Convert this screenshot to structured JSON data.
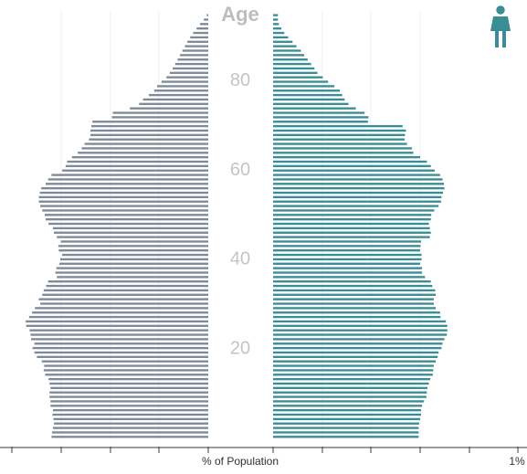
{
  "chart_data": {
    "type": "bar",
    "subtype": "population-pyramid",
    "title": "",
    "age_title": "Age",
    "xlabel": "% of Population",
    "ylabel": "Age",
    "age_range": [
      0,
      95
    ],
    "age_tick_labels": [
      "20",
      "40",
      "60",
      "80"
    ],
    "x_tick_labels": [
      "1%"
    ],
    "xlim": [
      0,
      1
    ],
    "grid": true,
    "legend": "none",
    "series": [
      {
        "name": "",
        "side": "left",
        "color": "#7f8a99",
        "values": [
          0.322,
          0.321,
          0.319,
          0.317,
          0.318,
          0.32,
          0.319,
          0.324,
          0.324,
          0.326,
          0.326,
          0.324,
          0.326,
          0.328,
          0.335,
          0.338,
          0.337,
          0.342,
          0.352,
          0.357,
          0.361,
          0.357,
          0.364,
          0.365,
          0.367,
          0.374,
          0.375,
          0.368,
          0.362,
          0.356,
          0.345,
          0.348,
          0.341,
          0.338,
          0.333,
          0.329,
          0.311,
          0.314,
          0.312,
          0.306,
          0.304,
          0.3,
          0.307,
          0.308,
          0.303,
          0.311,
          0.317,
          0.319,
          0.328,
          0.334,
          0.336,
          0.341,
          0.345,
          0.348,
          0.348,
          0.346,
          0.343,
          0.334,
          0.329,
          0.322,
          0.3,
          0.293,
          0.29,
          0.28,
          0.268,
          0.26,
          0.254,
          0.245,
          0.242,
          0.242,
          0.24,
          0.238,
          0.198,
          0.196,
          0.161,
          0.142,
          0.134,
          0.122,
          0.111,
          0.105,
          0.096,
          0.086,
          0.079,
          0.073,
          0.068,
          0.063,
          0.058,
          0.053,
          0.048,
          0.043,
          0.037,
          0.031,
          0.024,
          0.017,
          0.009,
          0.003
        ]
      },
      {
        "name": "",
        "side": "right",
        "color": "#3a8d94",
        "values": [
          0.299,
          0.299,
          0.299,
          0.3,
          0.302,
          0.304,
          0.304,
          0.306,
          0.31,
          0.315,
          0.316,
          0.317,
          0.32,
          0.323,
          0.328,
          0.329,
          0.33,
          0.334,
          0.338,
          0.34,
          0.346,
          0.348,
          0.352,
          0.357,
          0.358,
          0.358,
          0.355,
          0.344,
          0.343,
          0.334,
          0.33,
          0.33,
          0.334,
          0.333,
          0.327,
          0.324,
          0.312,
          0.306,
          0.306,
          0.302,
          0.305,
          0.305,
          0.302,
          0.303,
          0.304,
          0.322,
          0.324,
          0.322,
          0.32,
          0.324,
          0.325,
          0.331,
          0.34,
          0.345,
          0.346,
          0.349,
          0.352,
          0.351,
          0.348,
          0.343,
          0.332,
          0.324,
          0.316,
          0.302,
          0.288,
          0.285,
          0.275,
          0.27,
          0.271,
          0.273,
          0.266,
          0.195,
          0.196,
          0.188,
          0.17,
          0.155,
          0.147,
          0.142,
          0.137,
          0.126,
          0.113,
          0.102,
          0.091,
          0.085,
          0.078,
          0.071,
          0.064,
          0.057,
          0.048,
          0.04,
          0.031,
          0.023,
          0.017,
          0.012,
          0.01,
          0.01
        ]
      }
    ]
  },
  "header": {
    "gender_icon": "female-icon",
    "accent_color": "#3a8d94"
  }
}
